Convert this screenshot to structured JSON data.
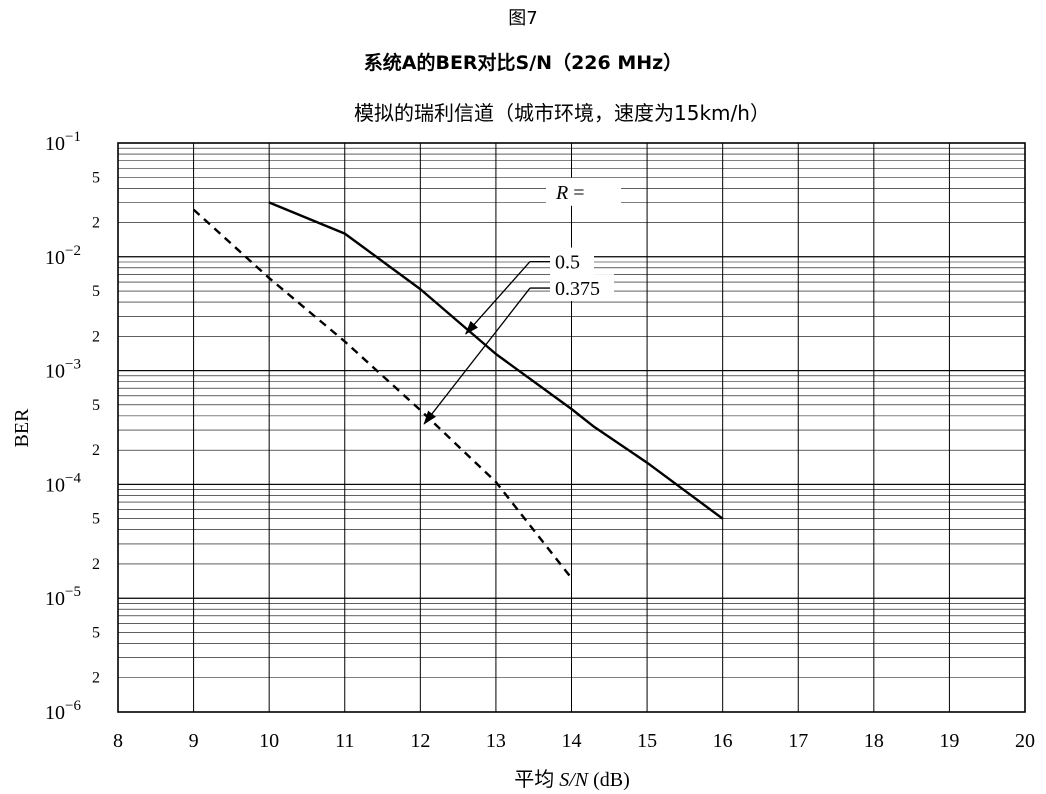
{
  "figure": {
    "label": "图7",
    "title": "系统A的BER对比S/N（226 MHz）"
  },
  "chart_data": {
    "type": "line",
    "subtitle": "模拟的瑞利信道（城市环境，速度为15km/h）",
    "xlabel_prefix": "平均 ",
    "xlabel_italic": "S/N",
    "xlabel_suffix": " (dB)",
    "ylabel": "BER",
    "xlim": [
      8,
      20
    ],
    "ylim": [
      1e-06,
      0.1
    ],
    "y_scale": "log",
    "grid": true,
    "x_ticks": [
      "8",
      "9",
      "10",
      "11",
      "12",
      "13",
      "14",
      "15",
      "16",
      "17",
      "18",
      "19",
      "20"
    ],
    "y_major_ticks": [
      {
        "base": "10",
        "exp": "−1",
        "value": 0.1
      },
      {
        "base": "10",
        "exp": "−2",
        "value": 0.01
      },
      {
        "base": "10",
        "exp": "−3",
        "value": 0.001
      },
      {
        "base": "10",
        "exp": "−4",
        "value": 0.0001
      },
      {
        "base": "10",
        "exp": "−5",
        "value": 1e-05
      },
      {
        "base": "10",
        "exp": "−6",
        "value": 1e-06
      }
    ],
    "y_minor_labels": [
      "5",
      "2"
    ],
    "series": [
      {
        "name": "0.5",
        "line_style": "solid",
        "points": [
          [
            10,
            0.03
          ],
          [
            11,
            0.016
          ],
          [
            12,
            0.0052
          ],
          [
            13,
            0.0014
          ],
          [
            14,
            0.00046
          ],
          [
            14.3,
            0.00032
          ],
          [
            15,
            0.000155
          ],
          [
            16,
            5e-05
          ]
        ]
      },
      {
        "name": "0.375",
        "line_style": "dashed",
        "points": [
          [
            9,
            0.026
          ],
          [
            10,
            0.0065
          ],
          [
            11,
            0.0018
          ],
          [
            12,
            0.00045
          ],
          [
            13,
            0.000105
          ],
          [
            14,
            1.5e-05
          ]
        ]
      }
    ],
    "legend": {
      "title_italic": "R",
      "title_suffix": " =",
      "placement": "upper-middle"
    }
  }
}
